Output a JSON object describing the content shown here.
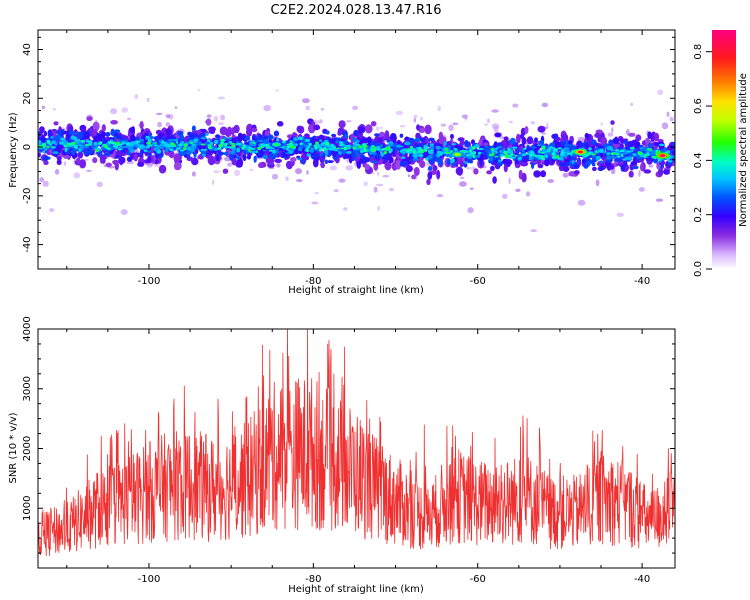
{
  "title": "C2E2.2024.028.13.47.R16",
  "colors": {
    "snr_line": "#f03030",
    "frame": "#000000"
  },
  "chart_data": [
    {
      "type": "heatmap",
      "xlabel": "Height of straight line (km)",
      "ylabel": "Frequency (Hz)",
      "xlim": [
        -113.5,
        -36
      ],
      "ylim": [
        -50,
        48
      ],
      "xticks": [
        -100,
        -80,
        -60,
        -40
      ],
      "yticks": [
        -40,
        -20,
        0,
        20,
        40
      ],
      "colorbar": {
        "label": "Normalized spectral amplitude",
        "range": [
          0.0,
          0.88
        ],
        "ticks": [
          0.0,
          0.2,
          0.4,
          0.6,
          0.8
        ],
        "colormap": "rainbow (white-violet-blue-cyan-green-yellow-red-magenta)"
      },
      "band_center_hz": [
        [
          -113.5,
          1
        ],
        [
          -100,
          0.8
        ],
        [
          -85,
          0.5
        ],
        [
          -70,
          -1
        ],
        [
          -60,
          -2.5
        ],
        [
          -50,
          -2.5
        ],
        [
          -40,
          -2.5
        ],
        [
          -36,
          -3
        ]
      ],
      "band_halfwidth_hz": 5,
      "peak_amplitudes": [
        {
          "x": -47.5,
          "y": -2,
          "value": 0.8
        },
        {
          "x": -37.5,
          "y": -3.5,
          "value": 0.85
        },
        {
          "x": -62.5,
          "y": -3,
          "value": 0.55
        },
        {
          "x": -84.5,
          "y": 1,
          "value": 0.45
        }
      ]
    },
    {
      "type": "line",
      "xlabel": "Height of straight line (km)",
      "ylabel": "SNR (10 * v/v)",
      "xlim": [
        -113.5,
        -36
      ],
      "ylim": [
        0,
        4000
      ],
      "xticks": [
        -100,
        -80,
        -60,
        -40
      ],
      "yticks": [
        1000,
        2000,
        3000,
        4000
      ],
      "envelope": [
        [
          -113.5,
          700
        ],
        [
          -110,
          850
        ],
        [
          -106,
          1300
        ],
        [
          -102,
          1500
        ],
        [
          -98,
          1750
        ],
        [
          -95,
          1800
        ],
        [
          -92,
          1700
        ],
        [
          -88,
          1900
        ],
        [
          -85,
          2400
        ],
        [
          -82,
          2500
        ],
        [
          -80,
          2500
        ],
        [
          -78,
          2300
        ],
        [
          -75,
          2100
        ],
        [
          -72,
          1650
        ],
        [
          -69,
          1350
        ],
        [
          -66,
          1050
        ],
        [
          -63,
          1600
        ],
        [
          -60,
          1400
        ],
        [
          -57,
          1400
        ],
        [
          -54,
          1500
        ],
        [
          -51,
          1200
        ],
        [
          -48,
          1200
        ],
        [
          -45,
          1500
        ],
        [
          -42,
          1400
        ],
        [
          -39,
          1000
        ],
        [
          -36,
          1300
        ]
      ],
      "peaks": [
        {
          "x": -95.7,
          "y": 3050
        },
        {
          "x": -85.3,
          "y": 3650
        },
        {
          "x": -83.7,
          "y": 3600
        },
        {
          "x": -80.7,
          "y": 4050
        },
        {
          "x": -79.3,
          "y": 3280
        },
        {
          "x": -77.5,
          "y": 3250
        },
        {
          "x": -76.5,
          "y": 3200
        },
        {
          "x": -54.5,
          "y": 2550
        },
        {
          "x": -52.5,
          "y": 2350
        },
        {
          "x": -46,
          "y": 2300
        },
        {
          "x": -66.5,
          "y": 2400
        },
        {
          "x": -104.5,
          "y": 2080
        },
        {
          "x": -88.2,
          "y": 2850
        }
      ],
      "series": [
        {
          "values_summary": "dense noisy SNR trace, ~1 sample per 0.05 km"
        }
      ]
    }
  ]
}
